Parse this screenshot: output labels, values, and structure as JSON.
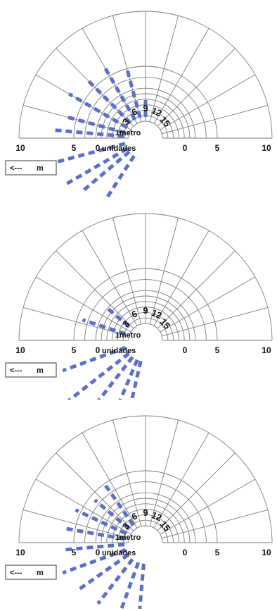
{
  "chart_data": [
    {
      "type": "polar-bar",
      "rlim": [
        0,
        10
      ],
      "tick_labels": [
        "10",
        "5",
        "0",
        "0",
        "5",
        "10"
      ],
      "unit_label": "unidades",
      "meter_label": "1metro",
      "direction_labels": [
        "3",
        "6",
        "9",
        "12",
        "15"
      ],
      "legend": "m",
      "legend_arrow": "<---",
      "bars": [
        {
          "angle_deg": 90,
          "value": 2.2
        },
        {
          "angle_deg": 105,
          "value": 5
        },
        {
          "angle_deg": 120,
          "value": 6
        },
        {
          "angle_deg": 135,
          "value": 6
        },
        {
          "angle_deg": 150,
          "value": 6.5
        },
        {
          "angle_deg": 165,
          "value": 6
        },
        {
          "angle_deg": 175,
          "value": 7
        },
        {
          "angle_deg": 195,
          "value": 8
        },
        {
          "angle_deg": 210,
          "value": 7
        },
        {
          "angle_deg": 220,
          "value": 6
        },
        {
          "angle_deg": 237,
          "value": 5
        }
      ]
    },
    {
      "type": "polar-bar",
      "rlim": [
        0,
        10
      ],
      "tick_labels": [
        "10",
        "5",
        "0",
        "0",
        "5",
        "10"
      ],
      "unit_label": "unidades",
      "meter_label": "1metro",
      "direction_labels": [
        "3",
        "6",
        "9",
        "12",
        "15"
      ],
      "legend": "m",
      "legend_arrow": "<---",
      "bars": [
        {
          "angle_deg": 140,
          "value": 3.2
        },
        {
          "angle_deg": 162,
          "value": 4.5
        },
        {
          "angle_deg": 200,
          "value": 6.5
        },
        {
          "angle_deg": 218,
          "value": 10
        },
        {
          "angle_deg": 232,
          "value": 9
        },
        {
          "angle_deg": 247,
          "value": 10
        },
        {
          "angle_deg": 257,
          "value": 6
        }
      ]
    },
    {
      "type": "polar-bar",
      "rlim": [
        0,
        10
      ],
      "tick_labels": [
        "10",
        "5",
        "0",
        "0",
        "5",
        "10"
      ],
      "unit_label": "unidades",
      "meter_label": "1metro",
      "direction_labels": [
        "3",
        "6",
        "9",
        "12",
        "15"
      ],
      "legend": "m",
      "legend_arrow": "<---",
      "bars": [
        {
          "angle_deg": 125,
          "value": 5
        },
        {
          "angle_deg": 140,
          "value": 4.5
        },
        {
          "angle_deg": 155,
          "value": 5.5
        },
        {
          "angle_deg": 170,
          "value": 6
        },
        {
          "angle_deg": 185,
          "value": 6
        },
        {
          "angle_deg": 200,
          "value": 6.5
        },
        {
          "angle_deg": 215,
          "value": 6
        },
        {
          "angle_deg": 232,
          "value": 5.5
        },
        {
          "angle_deg": 250,
          "value": 5
        },
        {
          "angle_deg": 265,
          "value": 4.5
        }
      ]
    }
  ]
}
